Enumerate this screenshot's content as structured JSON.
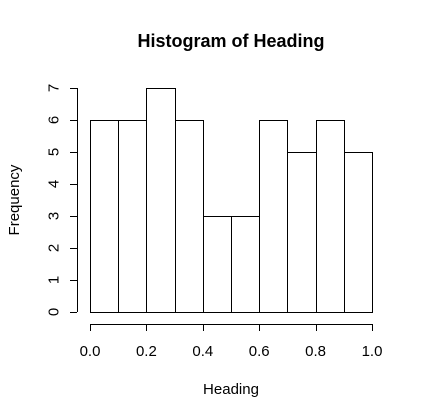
{
  "chart_data": {
    "type": "bar",
    "title": "Histogram of Heading",
    "xlabel": "Heading",
    "ylabel": "Frequency",
    "bin_edges": [
      0.0,
      0.1,
      0.2,
      0.3,
      0.4,
      0.5,
      0.6,
      0.7,
      0.8,
      0.9,
      1.0
    ],
    "values": [
      6,
      6,
      7,
      6,
      3,
      3,
      6,
      5,
      6,
      5
    ],
    "xlim": [
      0.0,
      1.0
    ],
    "ylim": [
      0,
      7
    ],
    "x_ticks": [
      0.0,
      0.2,
      0.4,
      0.6,
      0.8,
      1.0
    ],
    "x_tick_labels": [
      "0.0",
      "0.2",
      "0.4",
      "0.6",
      "0.8",
      "1.0"
    ],
    "y_ticks": [
      0,
      1,
      2,
      3,
      4,
      5,
      6,
      7
    ],
    "y_tick_labels": [
      "0",
      "1",
      "2",
      "3",
      "4",
      "5",
      "6",
      "7"
    ],
    "grid": false,
    "legend": "none",
    "bar_fill": "#ffffff",
    "bar_stroke": "#000000"
  }
}
